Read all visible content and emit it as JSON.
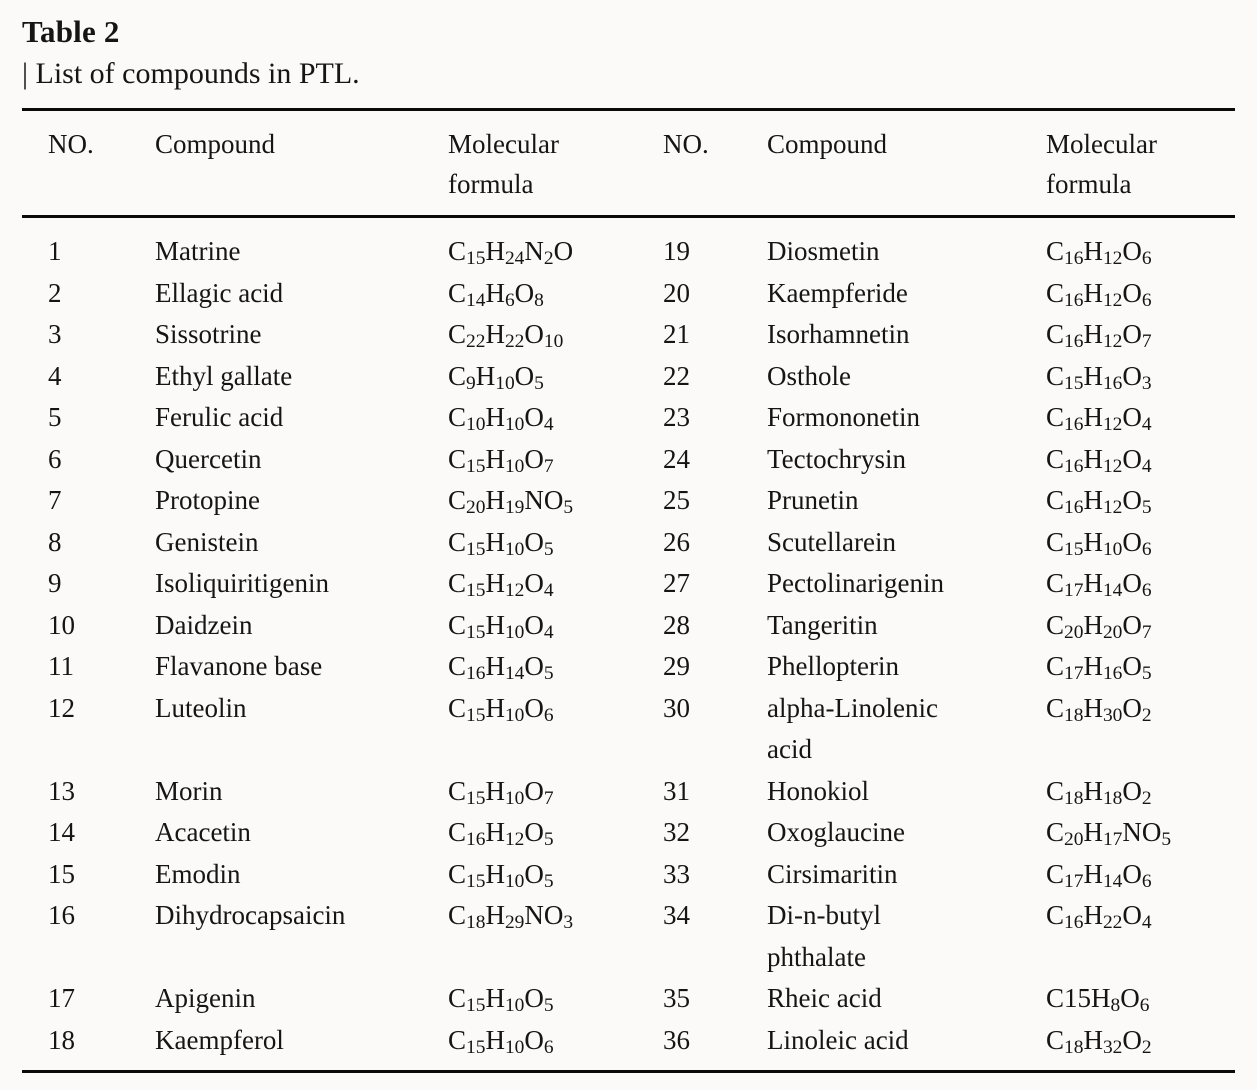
{
  "title": "Table 2",
  "caption": "| List of compounds in PTL.",
  "colors": {
    "background": "#fbfaf8",
    "text": "#161514",
    "rule": "#0a0a0a"
  },
  "table": {
    "columns": [
      "NO.",
      "Compound",
      "Molecular\nformula",
      "NO.",
      "Compound",
      "Molecular\nformula"
    ],
    "rows": [
      {
        "no_left": "1",
        "compound_left": "Matrine",
        "formula_left": "C_{15}H_{24}N_{2}O",
        "no_right": "19",
        "compound_right": "Diosmetin",
        "formula_right": "C_{16}H_{12}O_{6}"
      },
      {
        "no_left": "2",
        "compound_left": "Ellagic acid",
        "formula_left": "C_{14}H_{6}O_{8}",
        "no_right": "20",
        "compound_right": "Kaempferide",
        "formula_right": "C_{16}H_{12}O_{6}"
      },
      {
        "no_left": "3",
        "compound_left": "Sissotrine",
        "formula_left": "C_{22}H_{22}O_{10}",
        "no_right": "21",
        "compound_right": "Isorhamnetin",
        "formula_right": "C_{16}H_{12}O_{7}"
      },
      {
        "no_left": "4",
        "compound_left": "Ethyl gallate",
        "formula_left": "C_{9}H_{10}O_{5}",
        "no_right": "22",
        "compound_right": "Osthole",
        "formula_right": "C_{15}H_{16}O_{3}"
      },
      {
        "no_left": "5",
        "compound_left": "Ferulic acid",
        "formula_left": "C_{10}H_{10}O_{4}",
        "no_right": "23",
        "compound_right": "Formononetin",
        "formula_right": "C_{16}H_{12}O_{4}"
      },
      {
        "no_left": "6",
        "compound_left": "Quercetin",
        "formula_left": "C_{15}H_{10}O_{7}",
        "no_right": "24",
        "compound_right": "Tectochrysin",
        "formula_right": "C_{16}H_{12}O_{4}"
      },
      {
        "no_left": "7",
        "compound_left": "Protopine",
        "formula_left": "C_{20}H_{19}NO_{5}",
        "no_right": "25",
        "compound_right": "Prunetin",
        "formula_right": "C_{16}H_{12}O_{5}"
      },
      {
        "no_left": "8",
        "compound_left": "Genistein",
        "formula_left": "C_{15}H_{10}O_{5}",
        "no_right": "26",
        "compound_right": "Scutellarein",
        "formula_right": "C_{15}H_{10}O_{6}"
      },
      {
        "no_left": "9",
        "compound_left": "Isoliquiritigenin",
        "formula_left": "C_{15}H_{12}O_{4}",
        "no_right": "27",
        "compound_right": "Pectolinarigenin",
        "formula_right": "C_{17}H_{14}O_{6}"
      },
      {
        "no_left": "10",
        "compound_left": "Daidzein",
        "formula_left": "C_{15}H_{10}O_{4}",
        "no_right": "28",
        "compound_right": "Tangeritin",
        "formula_right": "C_{20}H_{20}O_{7}"
      },
      {
        "no_left": "11",
        "compound_left": "Flavanone base",
        "formula_left": "C_{16}H_{14}O_{5}",
        "no_right": "29",
        "compound_right": "Phellopterin",
        "formula_right": "C_{17}H_{16}O_{5}"
      },
      {
        "no_left": "12",
        "compound_left": "Luteolin",
        "formula_left": "C_{15}H_{10}O_{6}",
        "no_right": "30",
        "compound_right": "alpha-Linolenic\nacid",
        "formula_right": "C_{18}H_{30}O_{2}"
      },
      {
        "no_left": "13",
        "compound_left": "Morin",
        "formula_left": "C_{15}H_{10}O_{7}",
        "no_right": "31",
        "compound_right": "Honokiol",
        "formula_right": "C_{18}H_{18}O_{2}"
      },
      {
        "no_left": "14",
        "compound_left": "Acacetin",
        "formula_left": "C_{16}H_{12}O_{5}",
        "no_right": "32",
        "compound_right": "Oxoglaucine",
        "formula_right": "C_{20}H_{17}NO_{5}"
      },
      {
        "no_left": "15",
        "compound_left": "Emodin",
        "formula_left": "C_{15}H_{10}O_{5}",
        "no_right": "33",
        "compound_right": "Cirsimaritin",
        "formula_right": "C_{17}H_{14}O_{6}"
      },
      {
        "no_left": "16",
        "compound_left": "Dihydrocapsaicin",
        "formula_left": "C_{18}H_{29}NO_{3}",
        "no_right": "34",
        "compound_right": "Di-n-butyl\nphthalate",
        "formula_right": "C_{16}H_{22}O_{4}"
      },
      {
        "no_left": "17",
        "compound_left": "Apigenin",
        "formula_left": "C_{15}H_{10}O_{5}",
        "no_right": "35",
        "compound_right": "Rheic acid",
        "formula_right": "C15H_{8}O_{6}"
      },
      {
        "no_left": "18",
        "compound_left": "Kaempferol",
        "formula_left": "C_{15}H_{10}O_{6}",
        "no_right": "36",
        "compound_right": "Linoleic acid",
        "formula_right": "C_{18}H_{32}O_{2}"
      }
    ]
  }
}
